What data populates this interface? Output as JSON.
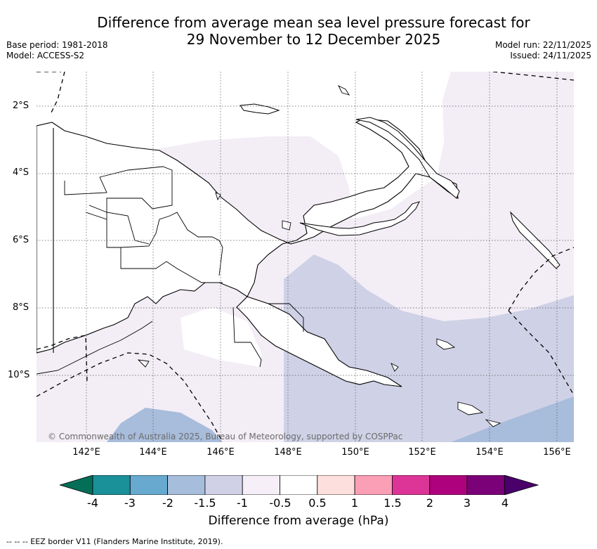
{
  "header": {
    "title_line1": "Difference from average mean sea level pressure forecast for",
    "title_line2": "29 November to 12 December 2025",
    "base_period": "Base period: 1981-2018",
    "model": "Model: ACCESS-S2",
    "model_run": "Model run: 22/11/2025",
    "issued": "Issued: 24/11/2025"
  },
  "map": {
    "copyright": "© Commonwealth of Australia 2025, Bureau of Meteorology, supported by COSPPac",
    "lat_labels": [
      "2°S",
      "4°S",
      "6°S",
      "8°S",
      "10°S"
    ],
    "lon_labels": [
      "142°E",
      "144°E",
      "146°E",
      "148°E",
      "150°E",
      "152°E",
      "154°E",
      "156°E"
    ],
    "colors": {
      "land_outline": "#000000",
      "anomaly_-1_to_-0.5": "#f3edf6",
      "anomaly_-1.5_to_-1": "#cfd1e6",
      "anomaly_-2_to_-1.5": "#a8bcdb",
      "background": "#ffffff"
    }
  },
  "legend": {
    "title": "Difference from average (hPa)",
    "labels": [
      "-4",
      "-3",
      "-2",
      "-1.5",
      "-1",
      "-0.5",
      "0.5",
      "1",
      "1.5",
      "2",
      "3",
      "4"
    ],
    "colors": [
      "#056e57",
      "#1a9099",
      "#67a9cf",
      "#a6bddb",
      "#d0d1e6",
      "#f6eff7",
      "#ffffff",
      "#fde0dd",
      "#fa9fb5",
      "#dd3497",
      "#ae017e",
      "#7a0177",
      "#49006a"
    ]
  },
  "footnote": "-- -- -- EEZ border V11 (Flanders Marine Institute, 2019)."
}
